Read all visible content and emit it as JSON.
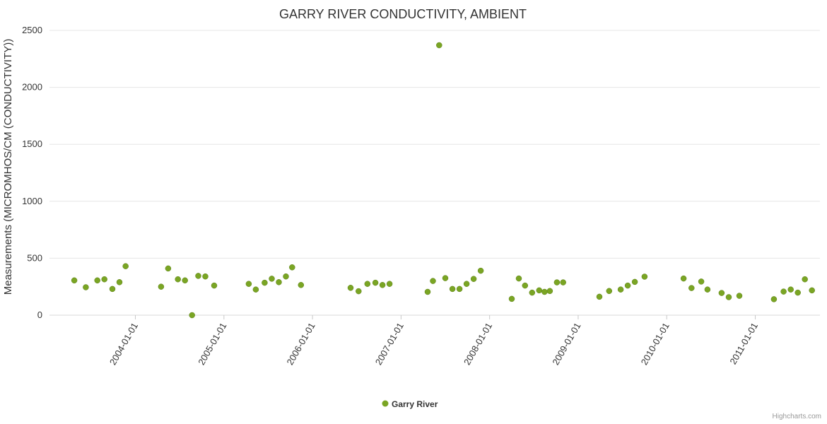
{
  "chart_data": {
    "type": "scatter",
    "title": "GARRY RIVER CONDUCTIVITY, AMBIENT",
    "ylabel": "Measurements (MICROMHOS/CM (CONDUCTIVITY))",
    "xlabel": "",
    "x_unit": "decimal_year",
    "x_range": [
      2003.03,
      2011.73
    ],
    "y_range": [
      0,
      2500
    ],
    "y_ticks": [
      0,
      500,
      1000,
      1500,
      2000,
      2500
    ],
    "x_ticks": [
      {
        "value": 2004,
        "label": "2004-01-01"
      },
      {
        "value": 2005,
        "label": "2005-01-01"
      },
      {
        "value": 2006,
        "label": "2006-01-01"
      },
      {
        "value": 2007,
        "label": "2007-01-01"
      },
      {
        "value": 2008,
        "label": "2008-01-01"
      },
      {
        "value": 2009,
        "label": "2009-01-01"
      },
      {
        "value": 2010,
        "label": "2010-01-01"
      },
      {
        "value": 2011,
        "label": "2011-01-01"
      }
    ],
    "grid": "horizontal-only",
    "legend": {
      "label": "Garry River",
      "position": "bottom-center"
    },
    "credits": "Highcharts.com",
    "series": [
      {
        "name": "Garry River",
        "marker_color": "#7aa524",
        "marker_stroke": "#5c7f18",
        "points": [
          [
            2003.31,
            305
          ],
          [
            2003.44,
            245
          ],
          [
            2003.57,
            305
          ],
          [
            2003.65,
            315
          ],
          [
            2003.74,
            230
          ],
          [
            2003.82,
            290
          ],
          [
            2003.89,
            430
          ],
          [
            2004.29,
            250
          ],
          [
            2004.37,
            410
          ],
          [
            2004.48,
            315
          ],
          [
            2004.56,
            305
          ],
          [
            2004.64,
            0
          ],
          [
            2004.71,
            345
          ],
          [
            2004.79,
            340
          ],
          [
            2004.89,
            260
          ],
          [
            2005.28,
            275
          ],
          [
            2005.36,
            225
          ],
          [
            2005.46,
            285
          ],
          [
            2005.54,
            320
          ],
          [
            2005.62,
            290
          ],
          [
            2005.7,
            340
          ],
          [
            2005.77,
            420
          ],
          [
            2005.87,
            265
          ],
          [
            2006.43,
            240
          ],
          [
            2006.52,
            210
          ],
          [
            2006.62,
            275
          ],
          [
            2006.71,
            285
          ],
          [
            2006.79,
            265
          ],
          [
            2006.87,
            275
          ],
          [
            2007.3,
            205
          ],
          [
            2007.36,
            300
          ],
          [
            2007.43,
            2370
          ],
          [
            2007.5,
            325
          ],
          [
            2007.58,
            230
          ],
          [
            2007.66,
            230
          ],
          [
            2007.74,
            275
          ],
          [
            2007.82,
            318
          ],
          [
            2007.9,
            390
          ],
          [
            2008.25,
            143
          ],
          [
            2008.33,
            322
          ],
          [
            2008.4,
            260
          ],
          [
            2008.48,
            198
          ],
          [
            2008.56,
            218
          ],
          [
            2008.62,
            205
          ],
          [
            2008.68,
            212
          ],
          [
            2008.76,
            288
          ],
          [
            2008.83,
            288
          ],
          [
            2009.24,
            162
          ],
          [
            2009.35,
            212
          ],
          [
            2009.48,
            225
          ],
          [
            2009.56,
            260
          ],
          [
            2009.64,
            292
          ],
          [
            2009.75,
            338
          ],
          [
            2010.19,
            322
          ],
          [
            2010.28,
            238
          ],
          [
            2010.39,
            295
          ],
          [
            2010.46,
            225
          ],
          [
            2010.62,
            195
          ],
          [
            2010.7,
            158
          ],
          [
            2010.82,
            170
          ],
          [
            2011.21,
            140
          ],
          [
            2011.32,
            207
          ],
          [
            2011.4,
            225
          ],
          [
            2011.48,
            198
          ],
          [
            2011.56,
            315
          ],
          [
            2011.64,
            218
          ]
        ]
      }
    ],
    "colors": {
      "background": "#ffffff",
      "title_text": "#333333",
      "axis_text": "#333333",
      "grid_line": "#e6e6e6",
      "axis_line": "#d8d8d8",
      "tick_mark": "#c8c8c8",
      "credits_text": "#999999"
    }
  }
}
